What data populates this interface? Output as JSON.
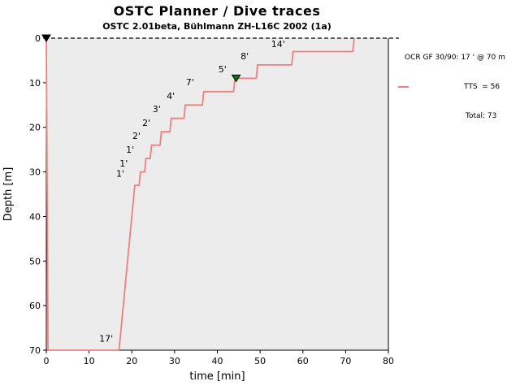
{
  "header": {
    "title": "OSTC Planner / Dive traces",
    "subtitle": "OSTC 2.01beta, Bühlmann ZH-L16C 2002 (1a)"
  },
  "legend": {
    "series_label": "OCR GF 30/90: 17 ' @ 70 m",
    "tts": "TTS  = 56",
    "total": "Total: 73"
  },
  "chart_data": {
    "type": "line",
    "title": "OSTC Planner / Dive traces",
    "subtitle": "OSTC 2.01beta, Bühlmann ZH-L16C 2002 (1a)",
    "xlabel": "time [min]",
    "ylabel": "Depth [m]",
    "xlim": [
      0,
      80
    ],
    "ylim": [
      70,
      0
    ],
    "x_ticks": [
      0,
      10,
      20,
      30,
      40,
      50,
      60,
      70,
      80
    ],
    "y_ticks": [
      0,
      10,
      20,
      30,
      40,
      50,
      60,
      70
    ],
    "grid": false,
    "plot_bg": "#ececec",
    "surface_line": {
      "y": 0,
      "style": "dashed",
      "color": "#000000"
    },
    "bottom_phase": {
      "depth_m": 70,
      "time_min": 17
    },
    "summary": {
      "tts_min": 56,
      "total_min": 73,
      "gradient_factors": "30/90"
    },
    "deco_stops": [
      {
        "depth_m": 33,
        "minutes": 1
      },
      {
        "depth_m": 30,
        "minutes": 1
      },
      {
        "depth_m": 27,
        "minutes": 1
      },
      {
        "depth_m": 24,
        "minutes": 2
      },
      {
        "depth_m": 21,
        "minutes": 2
      },
      {
        "depth_m": 18,
        "minutes": 3
      },
      {
        "depth_m": 15,
        "minutes": 4
      },
      {
        "depth_m": 12,
        "minutes": 7
      },
      {
        "depth_m": 9,
        "minutes": 5
      },
      {
        "depth_m": 6,
        "minutes": 8
      },
      {
        "depth_m": 3,
        "minutes": 14
      }
    ],
    "series": [
      {
        "name": "OCR GF 30/90: 17 ' @ 70 m",
        "color": "#f08080",
        "points": [
          [
            0,
            0
          ],
          [
            0.4,
            70
          ],
          [
            17,
            70
          ],
          [
            20.7,
            33
          ],
          [
            21.7,
            33
          ],
          [
            22.0,
            30
          ],
          [
            23.0,
            30
          ],
          [
            23.3,
            27
          ],
          [
            24.3,
            27
          ],
          [
            24.6,
            24
          ],
          [
            26.6,
            24
          ],
          [
            26.9,
            21
          ],
          [
            28.9,
            21
          ],
          [
            29.2,
            18
          ],
          [
            32.2,
            18
          ],
          [
            32.5,
            15
          ],
          [
            36.5,
            15
          ],
          [
            36.8,
            12
          ],
          [
            43.8,
            12
          ],
          [
            44.1,
            9
          ],
          [
            49.1,
            9
          ],
          [
            49.4,
            6
          ],
          [
            57.4,
            6
          ],
          [
            57.7,
            3
          ],
          [
            71.7,
            3
          ],
          [
            72,
            0
          ]
        ]
      }
    ],
    "stop_labels": [
      {
        "text": "17'",
        "x": 14.0,
        "y": 67.5
      },
      {
        "text": "1'",
        "x": 17.3,
        "y": 30.5
      },
      {
        "text": "1'",
        "x": 18.1,
        "y": 28.3
      },
      {
        "text": "1'",
        "x": 19.6,
        "y": 25.2
      },
      {
        "text": "2'",
        "x": 21.1,
        "y": 22.1
      },
      {
        "text": "2'",
        "x": 23.4,
        "y": 19.1
      },
      {
        "text": "3'",
        "x": 25.8,
        "y": 16.0
      },
      {
        "text": "4'",
        "x": 29.1,
        "y": 13.1
      },
      {
        "text": "7'",
        "x": 33.6,
        "y": 10.0
      },
      {
        "text": "5'",
        "x": 41.2,
        "y": 7.1
      },
      {
        "text": "8'",
        "x": 46.4,
        "y": 4.2
      },
      {
        "text": "14'",
        "x": 54.2,
        "y": 1.5
      }
    ],
    "markers": [
      {
        "x": 0,
        "y": 0,
        "shape": "triangle-down",
        "color": "#000000",
        "name": "dive-start-marker"
      },
      {
        "x": 44.4,
        "y": 9,
        "shape": "triangle-down",
        "color": "#008000",
        "name": "gas-switch-marker"
      }
    ]
  }
}
